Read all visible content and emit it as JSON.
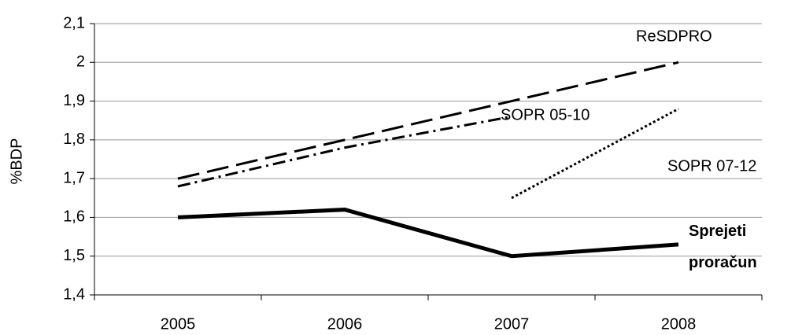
{
  "chart_data": {
    "type": "line",
    "y_label": "%BDP",
    "categories": [
      "2005",
      "2006",
      "2007",
      "2008"
    ],
    "series": [
      {
        "name": "ReSDPRO",
        "color": "#000000",
        "values": [
          1.7,
          1.8,
          1.9,
          2.0
        ]
      },
      {
        "name": "SOPR 05-10",
        "color": "#000000",
        "values": [
          1.68,
          1.78,
          1.86,
          null
        ]
      },
      {
        "name": "SOPR 07-12",
        "color": "#000000",
        "values": [
          null,
          null,
          1.65,
          1.88
        ]
      },
      {
        "name": "Sprejeti proračun",
        "color": "#000000",
        "values": [
          1.6,
          1.62,
          1.5,
          1.53
        ]
      }
    ],
    "ylim": [
      1.4,
      2.1
    ],
    "yticks": [
      {
        "value": 1.4,
        "label": "1,4"
      },
      {
        "value": 1.5,
        "label": "1,5"
      },
      {
        "value": 1.6,
        "label": "1,6"
      },
      {
        "value": 1.7,
        "label": "1,7"
      },
      {
        "value": 1.8,
        "label": "1,8"
      },
      {
        "value": 1.9,
        "label": "1,9"
      },
      2,
      {
        "value": 2.1,
        "label": "2,1"
      }
    ],
    "grid": true
  }
}
